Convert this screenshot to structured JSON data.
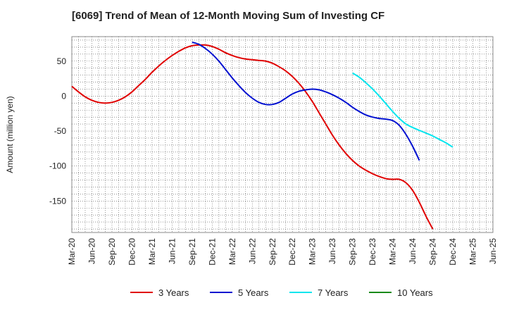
{
  "chart_data": {
    "type": "line",
    "title": "[6069]  Trend of Mean of 12-Month Moving Sum of Investing CF",
    "xlabel": "",
    "ylabel": "Amount (million yen)",
    "ylim": [
      -195,
      85
    ],
    "yticks": [
      50,
      0,
      -50,
      -100,
      -150
    ],
    "x_tick_labels": [
      "Mar-20",
      "Jun-20",
      "Sep-20",
      "Dec-20",
      "Mar-21",
      "Jun-21",
      "Sep-21",
      "Dec-21",
      "Mar-22",
      "Jun-22",
      "Sep-22",
      "Dec-22",
      "Mar-23",
      "Jun-23",
      "Sep-23",
      "Dec-23",
      "Mar-24",
      "Jun-24",
      "Sep-24",
      "Dec-24",
      "Mar-25",
      "Jun-25"
    ],
    "grid": true,
    "legend_position": "bottom",
    "series": [
      {
        "name": "3 Years",
        "color": "#e00000",
        "start_index": 0,
        "values": [
          14,
          6,
          -1,
          -6,
          -9,
          -10,
          -9,
          -6,
          -1,
          6,
          15,
          24,
          34,
          43,
          51,
          58,
          64,
          69,
          72,
          73,
          73,
          71,
          67,
          62,
          58,
          55,
          53,
          52,
          51,
          50,
          47,
          42,
          36,
          28,
          18,
          6,
          -8,
          -24,
          -40,
          -56,
          -70,
          -82,
          -92,
          -100,
          -106,
          -111,
          -115,
          -118,
          -119,
          -119,
          -124,
          -135,
          -152,
          -172,
          -190
        ]
      },
      {
        "name": "5 Years",
        "color": "#0010d0",
        "start_index": 18,
        "values": [
          77,
          74,
          68,
          60,
          50,
          38,
          26,
          15,
          5,
          -3,
          -9,
          -12,
          -12,
          -9,
          -3,
          3,
          7,
          9,
          10,
          9,
          6,
          2,
          -3,
          -9,
          -16,
          -22,
          -27,
          -30,
          -32,
          -33,
          -35,
          -42,
          -55,
          -72,
          -92
        ]
      },
      {
        "name": "7 Years",
        "color": "#00e5ee",
        "start_index": 42,
        "values": [
          33,
          27,
          19,
          10,
          0,
          -11,
          -22,
          -32,
          -40,
          -45,
          -49,
          -53,
          -57,
          -62,
          -67,
          -73
        ]
      },
      {
        "name": "10 Years",
        "color": "#1a8a1a",
        "start_index": 0,
        "values": []
      }
    ]
  }
}
